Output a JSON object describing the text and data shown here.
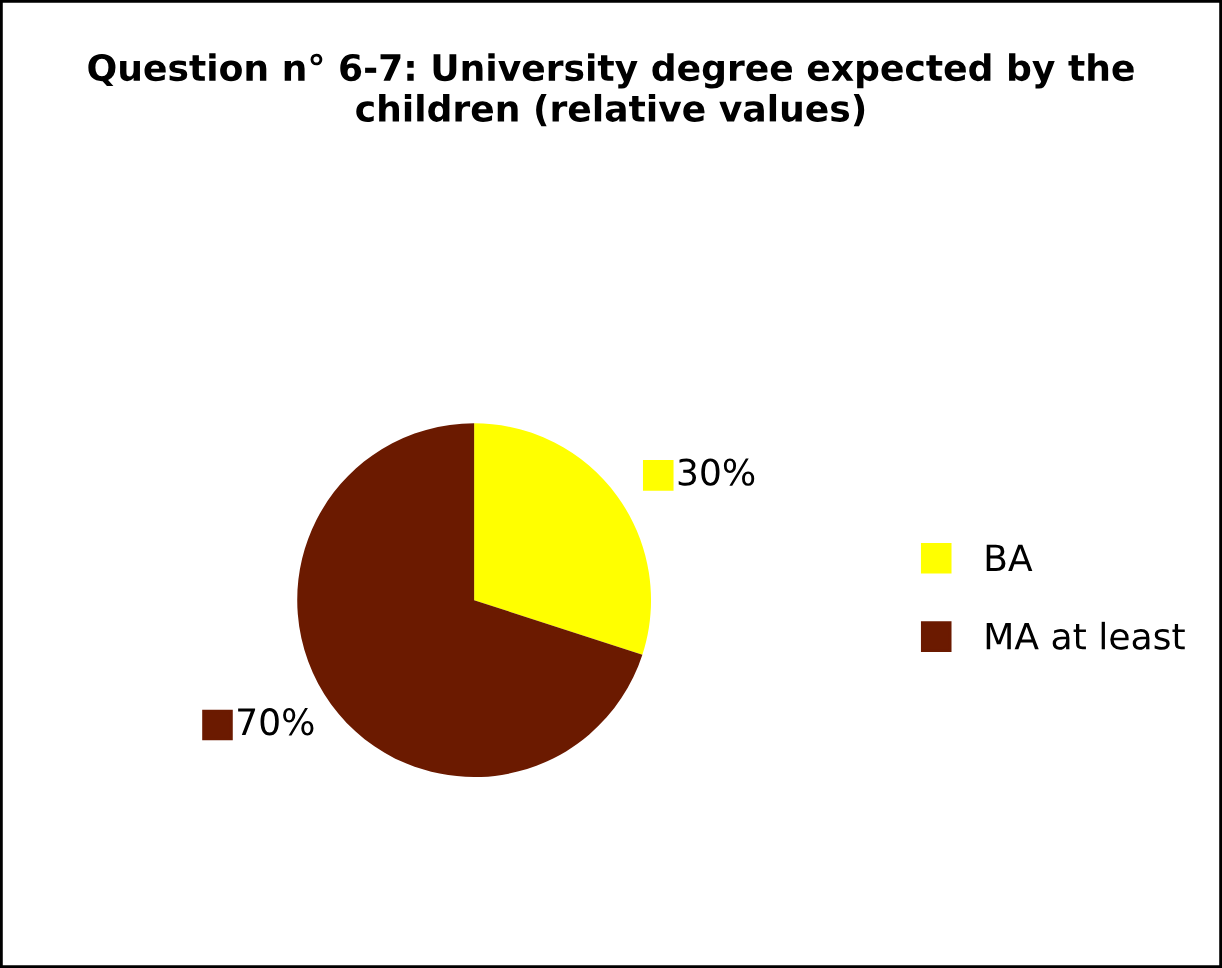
{
  "chart_data": {
    "type": "pie",
    "title": "Question n° 6-7: University degree expected by the children (relative values)",
    "categories": [
      "BA",
      "MA at least"
    ],
    "values": [
      30,
      70
    ],
    "colors": [
      "#ffff00",
      "#6b1a00"
    ],
    "value_labels": [
      "30%",
      "70%"
    ],
    "legend": "right"
  }
}
